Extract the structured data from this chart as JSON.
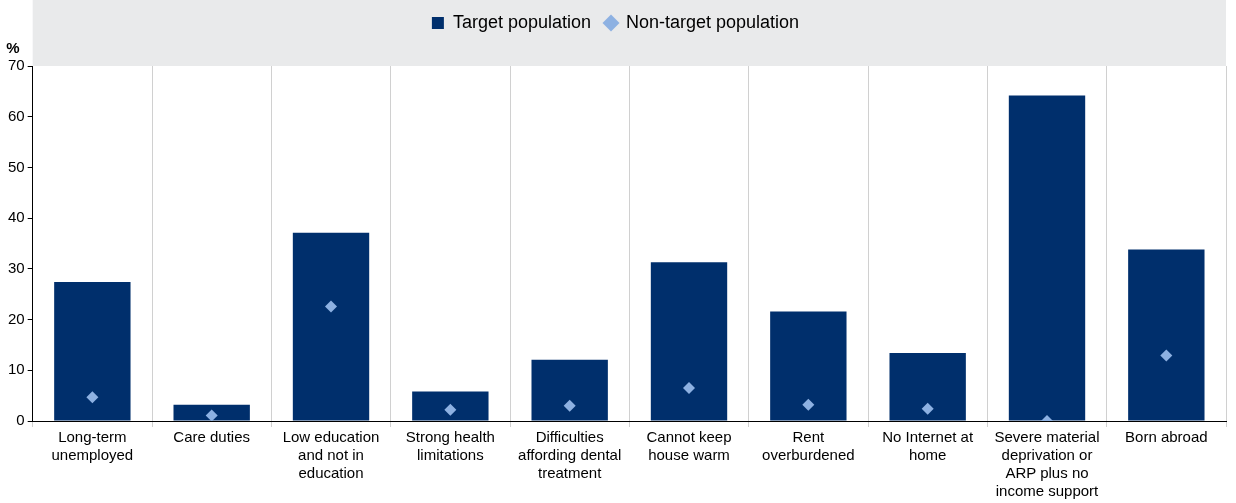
{
  "chart_data": {
    "type": "bar",
    "ylabel": "%",
    "categories": [
      "Long-term unemployed",
      "Care duties",
      "Low education and not in education",
      "Strong health limitations",
      "Difficulties affording dental treatment",
      "Cannot keep house warm",
      "Rent overburdened",
      "No Internet at home",
      "Severe material deprivation or ARP plus no income support",
      "Born abroad"
    ],
    "series": [
      {
        "name": "Target population",
        "color": "#002f6c",
        "values": [
          27.4,
          3.2,
          37.1,
          5.8,
          12.1,
          31.3,
          21.6,
          13.4,
          64.2,
          33.8
        ]
      },
      {
        "name": "Non-target population",
        "type": "scatter",
        "color": "#8db1e2",
        "values": [
          4.7,
          1.1,
          22.6,
          2.2,
          3.0,
          6.5,
          3.2,
          2.4,
          0,
          12.9
        ]
      }
    ],
    "ylim": [
      0,
      70
    ],
    "yticks": [
      0,
      10,
      20,
      30,
      40,
      50,
      60,
      70
    ],
    "grid": "x",
    "legend": "top",
    "marker": "diamond"
  }
}
